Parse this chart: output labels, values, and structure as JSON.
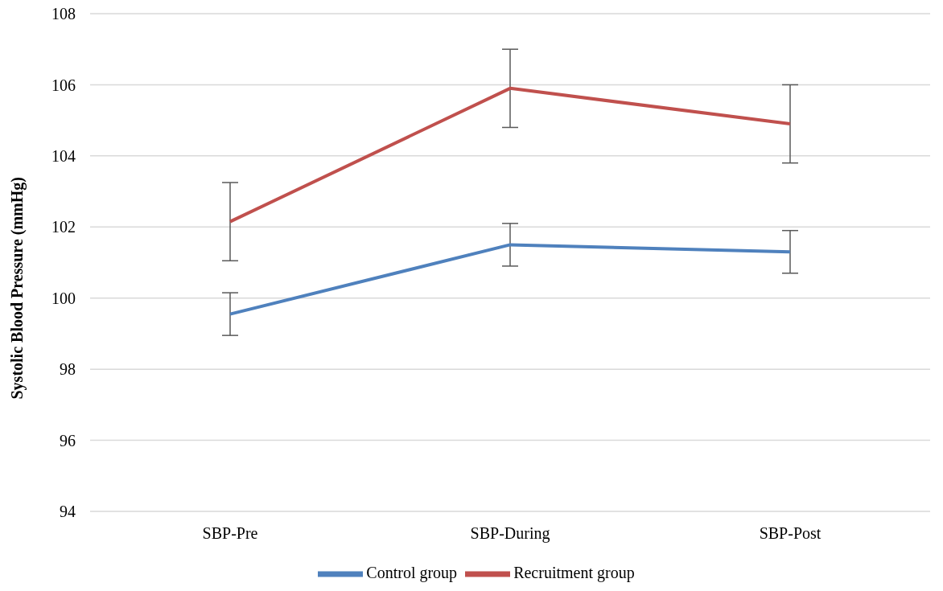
{
  "chart_data": {
    "type": "line",
    "ylabel": "Systolic Blood Pressure (mmHg)",
    "categories": [
      "SBP-Pre",
      "SBP-During",
      "SBP-Post"
    ],
    "series": [
      {
        "name": "Control group",
        "color": "#4f81bd",
        "values": [
          99.55,
          101.5,
          101.3
        ],
        "errors": [
          0.6,
          0.6,
          0.6
        ]
      },
      {
        "name": "Recruitment group",
        "color": "#c0504d",
        "values": [
          102.15,
          105.9,
          104.9
        ],
        "errors": [
          1.1,
          1.1,
          1.1
        ]
      }
    ],
    "ylim": [
      94,
      108
    ],
    "yticks": [
      94,
      96,
      98,
      100,
      102,
      104,
      106,
      108
    ],
    "grid": "y",
    "legend": "bottom",
    "marker": "none",
    "line_style": "solid"
  }
}
